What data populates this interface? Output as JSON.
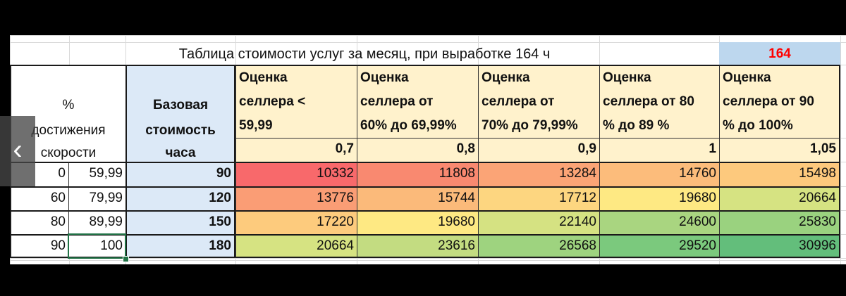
{
  "sheet": {
    "title": "Таблица стоимости услуг за месяц, при выработке  164 ч",
    "hours": "164",
    "header": {
      "pct_lines": [
        "%",
        "достижения",
        "скорости"
      ],
      "base_lines": [
        "Базовая",
        "стоимость",
        "часа"
      ],
      "seller_columns": [
        {
          "lines": [
            "Оценка",
            "селлера <",
            "59,99"
          ],
          "coef": "0,7"
        },
        {
          "lines": [
            "Оценка",
            "селлера от",
            "60% до 69,99%"
          ],
          "coef": "0,8"
        },
        {
          "lines": [
            "Оценка",
            "селлера от",
            "70% до 79,99%"
          ],
          "coef": "0,9"
        },
        {
          "lines": [
            "Оценка",
            "селлера от 80",
            "% до 89 %"
          ],
          "coef": "1"
        },
        {
          "lines": [
            "Оценка",
            "селлера от 90",
            "% до 100%"
          ],
          "coef": "1,05"
        }
      ]
    },
    "rows": [
      {
        "from": "0",
        "to": "59,99",
        "base": "90",
        "values": [
          "10332",
          "11808",
          "13284",
          "14760",
          "15498"
        ]
      },
      {
        "from": "60",
        "to": "79,99",
        "base": "120",
        "values": [
          "13776",
          "15744",
          "17712",
          "19680",
          "20664"
        ]
      },
      {
        "from": "80",
        "to": "89,99",
        "base": "150",
        "values": [
          "17220",
          "19680",
          "22140",
          "24600",
          "25830"
        ]
      },
      {
        "from": "90",
        "to": "100",
        "base": "180",
        "values": [
          "20664",
          "23616",
          "26568",
          "29520",
          "30996"
        ]
      }
    ],
    "heat_colors": [
      [
        "#f8696b",
        "#f98970",
        "#fba476",
        "#fcbc7b",
        "#fdc97d"
      ],
      [
        "#fa9d75",
        "#fbba7a",
        "#fdd680",
        "#fee983",
        "#d6e382"
      ],
      [
        "#fdcb7d",
        "#fee983",
        "#d5e282",
        "#a9d580",
        "#9ad27f"
      ],
      [
        "#d6e382",
        "#c3dc81",
        "#9ed37f",
        "#7bc97d",
        "#63be7b"
      ]
    ],
    "colors": {
      "base_fill": "#dce9f7",
      "header_fill": "#fff2cc",
      "hours_fill": "#bdd7ee",
      "hours_text": "#ff0000",
      "selection": "#217346"
    }
  },
  "nav": {
    "prev_icon": "chevron-left-icon"
  }
}
